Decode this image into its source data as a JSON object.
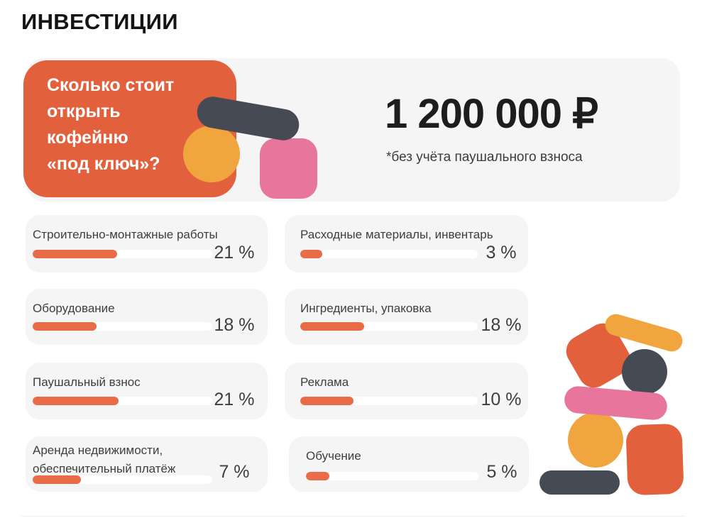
{
  "title": "ИНВЕСТИЦИИ",
  "hero": {
    "question": "Сколько стоит\nоткрыть\nкофейню\n«под ключ»?",
    "price": "1 200 000 ₽",
    "note": "*без учёта паушального взноса"
  },
  "colors": {
    "accent_orange": "#E2603C",
    "progress_fill": "#E86C47",
    "yellow": "#F0A53E",
    "pink": "#E8759B",
    "dark_slate": "#454A54",
    "card_bg": "#F5F5F6",
    "text_dark": "#1D1D1D",
    "text_gray": "#3E3E3E"
  },
  "items": [
    {
      "label": "Строительно-монтажные работы",
      "percent_label": "21 %",
      "fill": 0.47
    },
    {
      "label": "Оборудование",
      "percent_label": "18 %",
      "fill": 0.355
    },
    {
      "label": "Паушальный взнос",
      "percent_label": "21 %",
      "fill": 0.48
    },
    {
      "label": "Аренда недвижимости,\nобеспечительный платёж",
      "percent_label": "7 %",
      "fill": 0.27
    },
    {
      "label": "Расходные материалы, инвентарь",
      "percent_label": "3 %",
      "fill": 0.125
    },
    {
      "label": "Ингредиенты, упаковка",
      "percent_label": "18 %",
      "fill": 0.36
    },
    {
      "label": "Реклама",
      "percent_label": "10 %",
      "fill": 0.3
    },
    {
      "label": "Обучение",
      "percent_label": "5 %",
      "fill": 0.135
    }
  ],
  "chart_data": {
    "type": "bar",
    "title": "ИНВЕСТИЦИИ — Сколько стоит открыть кофейню «под ключ»? 1 200 000 ₽ (*без учёта паушального взноса)",
    "categories": [
      "Строительно-монтажные работы",
      "Оборудование",
      "Паушальный взнос",
      "Аренда недвижимости, обеспечительный платёж",
      "Расходные материалы, инвентарь",
      "Ингредиенты, упаковка",
      "Реклама",
      "Обучение"
    ],
    "values": [
      21,
      18,
      21,
      7,
      3,
      18,
      10,
      5
    ],
    "unit": "%",
    "total_price_rub": "1 200 000 ₽",
    "layout": "two-column card list with horizontal progress bars, grid off, no axes"
  }
}
